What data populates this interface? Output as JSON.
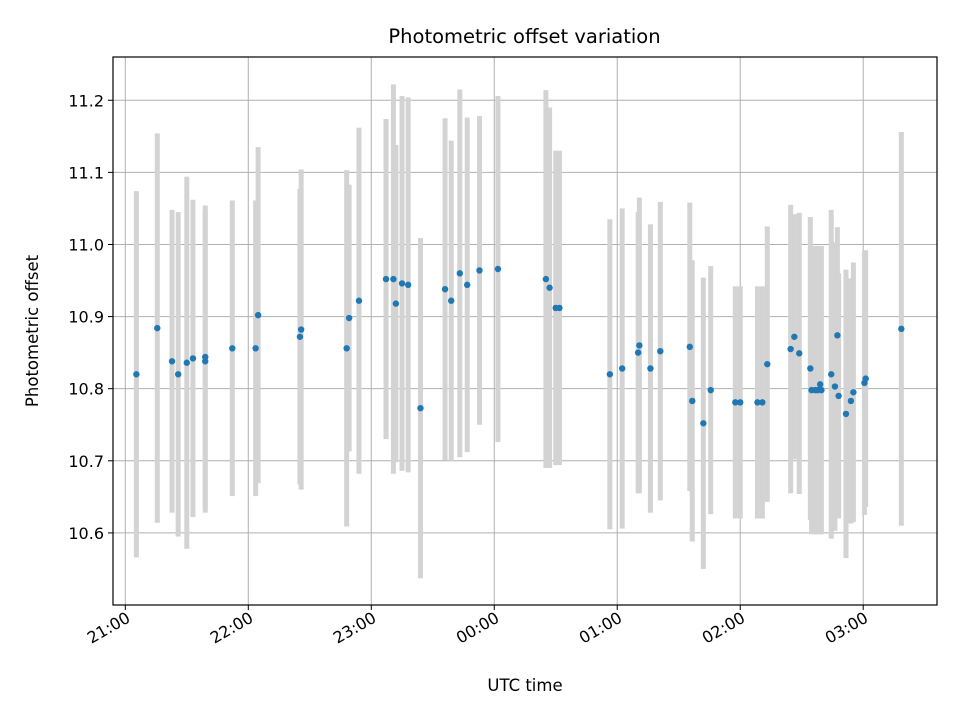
{
  "chart_data": {
    "type": "scatter",
    "title": "Photometric offset variation",
    "xlabel": "UTC time",
    "ylabel": "Photometric offset",
    "x_unit": "hours (UTC, continuing past midnight)",
    "xlim": [
      20.9,
      27.6
    ],
    "ylim": [
      10.5,
      11.26
    ],
    "x_ticks": [
      {
        "value": 21,
        "label": "21:00"
      },
      {
        "value": 22,
        "label": "22:00"
      },
      {
        "value": 23,
        "label": "23:00"
      },
      {
        "value": 24,
        "label": "00:00"
      },
      {
        "value": 25,
        "label": "01:00"
      },
      {
        "value": 26,
        "label": "02:00"
      },
      {
        "value": 27,
        "label": "03:00"
      }
    ],
    "y_ticks": [
      {
        "value": 10.6,
        "label": "10.6"
      },
      {
        "value": 10.7,
        "label": "10.7"
      },
      {
        "value": 10.8,
        "label": "10.8"
      },
      {
        "value": 10.9,
        "label": "10.9"
      },
      {
        "value": 11.0,
        "label": "11.0"
      },
      {
        "value": 11.1,
        "label": "11.1"
      },
      {
        "value": 11.2,
        "label": "11.2"
      }
    ],
    "grid": true,
    "colors": {
      "points": "#1f77b4",
      "errorbars": "#d3d3d3",
      "grid": "#b0b0b0"
    },
    "series": [
      {
        "points": [
          {
            "x": 21.09,
            "y": 10.82,
            "err": 0.254
          },
          {
            "x": 21.26,
            "y": 10.884,
            "err": 0.27
          },
          {
            "x": 21.38,
            "y": 10.838,
            "err": 0.21
          },
          {
            "x": 21.43,
            "y": 10.82,
            "err": 0.225
          },
          {
            "x": 21.5,
            "y": 10.836,
            "err": 0.258
          },
          {
            "x": 21.55,
            "y": 10.842,
            "err": 0.22
          },
          {
            "x": 21.65,
            "y": 10.838,
            "err": 0.21
          },
          {
            "x": 21.65,
            "y": 10.844,
            "err": 0.21
          },
          {
            "x": 21.87,
            "y": 10.856,
            "err": 0.205
          },
          {
            "x": 22.06,
            "y": 10.856,
            "err": 0.205
          },
          {
            "x": 22.08,
            "y": 10.902,
            "err": 0.233
          },
          {
            "x": 22.42,
            "y": 10.872,
            "err": 0.205
          },
          {
            "x": 22.43,
            "y": 10.882,
            "err": 0.222
          },
          {
            "x": 22.8,
            "y": 10.856,
            "err": 0.247
          },
          {
            "x": 22.82,
            "y": 10.898,
            "err": 0.185
          },
          {
            "x": 22.9,
            "y": 10.922,
            "err": 0.24
          },
          {
            "x": 23.12,
            "y": 10.952,
            "err": 0.222
          },
          {
            "x": 23.18,
            "y": 10.952,
            "err": 0.27
          },
          {
            "x": 23.2,
            "y": 10.918,
            "err": 0.22
          },
          {
            "x": 23.25,
            "y": 10.946,
            "err": 0.26
          },
          {
            "x": 23.3,
            "y": 10.944,
            "err": 0.26
          },
          {
            "x": 23.4,
            "y": 10.773,
            "err": 0.236
          },
          {
            "x": 23.6,
            "y": 10.938,
            "err": 0.237
          },
          {
            "x": 23.65,
            "y": 10.922,
            "err": 0.222
          },
          {
            "x": 23.72,
            "y": 10.96,
            "err": 0.255
          },
          {
            "x": 23.78,
            "y": 10.944,
            "err": 0.232
          },
          {
            "x": 23.88,
            "y": 10.964,
            "err": 0.214
          },
          {
            "x": 24.03,
            "y": 10.966,
            "err": 0.24
          },
          {
            "x": 24.42,
            "y": 10.952,
            "err": 0.262
          },
          {
            "x": 24.45,
            "y": 10.94,
            "err": 0.25
          },
          {
            "x": 24.5,
            "y": 10.912,
            "err": 0.218
          },
          {
            "x": 24.53,
            "y": 10.912,
            "err": 0.218
          },
          {
            "x": 24.94,
            "y": 10.82,
            "err": 0.215
          },
          {
            "x": 25.04,
            "y": 10.828,
            "err": 0.222
          },
          {
            "x": 25.17,
            "y": 10.85,
            "err": 0.195
          },
          {
            "x": 25.18,
            "y": 10.86,
            "err": 0.205
          },
          {
            "x": 25.27,
            "y": 10.828,
            "err": 0.2
          },
          {
            "x": 25.35,
            "y": 10.852,
            "err": 0.207
          },
          {
            "x": 25.59,
            "y": 10.858,
            "err": 0.2
          },
          {
            "x": 25.61,
            "y": 10.783,
            "err": 0.195
          },
          {
            "x": 25.7,
            "y": 10.752,
            "err": 0.202
          },
          {
            "x": 25.76,
            "y": 10.798,
            "err": 0.172
          },
          {
            "x": 25.96,
            "y": 10.781,
            "err": 0.161
          },
          {
            "x": 26.0,
            "y": 10.781,
            "err": 0.161
          },
          {
            "x": 26.14,
            "y": 10.781,
            "err": 0.161
          },
          {
            "x": 26.18,
            "y": 10.781,
            "err": 0.161
          },
          {
            "x": 26.22,
            "y": 10.834,
            "err": 0.191
          },
          {
            "x": 26.41,
            "y": 10.855,
            "err": 0.2
          },
          {
            "x": 26.44,
            "y": 10.872,
            "err": 0.17
          },
          {
            "x": 26.48,
            "y": 10.849,
            "err": 0.195
          },
          {
            "x": 26.57,
            "y": 10.828,
            "err": 0.21
          },
          {
            "x": 26.58,
            "y": 10.798,
            "err": 0.2
          },
          {
            "x": 26.61,
            "y": 10.798,
            "err": 0.2
          },
          {
            "x": 26.63,
            "y": 10.798,
            "err": 0.2
          },
          {
            "x": 26.65,
            "y": 10.806,
            "err": 0.19
          },
          {
            "x": 26.66,
            "y": 10.798,
            "err": 0.2
          },
          {
            "x": 26.74,
            "y": 10.82,
            "err": 0.228
          },
          {
            "x": 26.77,
            "y": 10.803,
            "err": 0.2
          },
          {
            "x": 26.79,
            "y": 10.874,
            "err": 0.15
          },
          {
            "x": 26.8,
            "y": 10.79,
            "err": 0.17
          },
          {
            "x": 26.86,
            "y": 10.765,
            "err": 0.2
          },
          {
            "x": 26.9,
            "y": 10.783,
            "err": 0.17
          },
          {
            "x": 26.92,
            "y": 10.795,
            "err": 0.18
          },
          {
            "x": 27.01,
            "y": 10.808,
            "err": 0.183
          },
          {
            "x": 27.02,
            "y": 10.814,
            "err": 0.178
          },
          {
            "x": 27.31,
            "y": 10.883,
            "err": 0.273
          }
        ]
      }
    ]
  }
}
